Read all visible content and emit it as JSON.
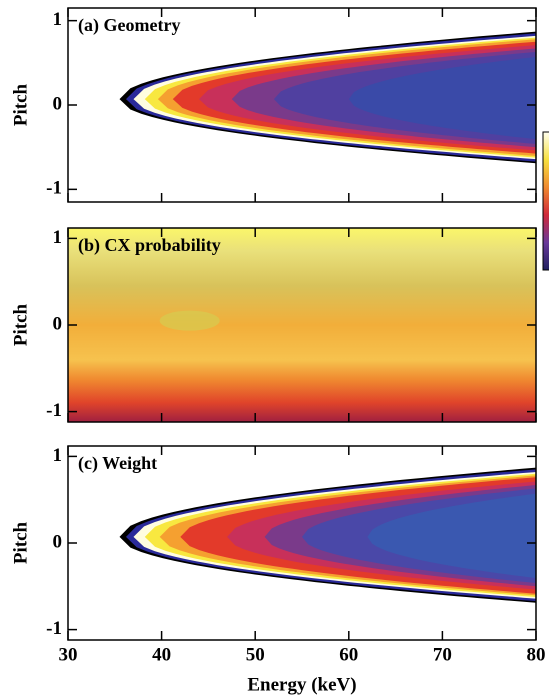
{
  "chart_data": [
    {
      "type": "contour",
      "title": "(a) Geometry",
      "y_label": "Pitch",
      "ylim": [
        -1.15,
        1.15
      ],
      "yticks": [
        -1,
        0,
        1
      ]
    },
    {
      "type": "contour",
      "title": "(b) CX probability",
      "y_label": "Pitch",
      "ylim": [
        -1.12,
        1.12
      ],
      "yticks": [
        -1,
        0,
        1
      ]
    },
    {
      "type": "contour",
      "title": "(c) Weight",
      "y_label": "Pitch",
      "x_label": "Energy (keV)",
      "xlim": [
        30,
        80
      ],
      "xticks": [
        30,
        40,
        50,
        60,
        70,
        80
      ],
      "ylim": [
        -1.12,
        1.12
      ],
      "yticks": [
        -1,
        0,
        1
      ]
    }
  ]
}
